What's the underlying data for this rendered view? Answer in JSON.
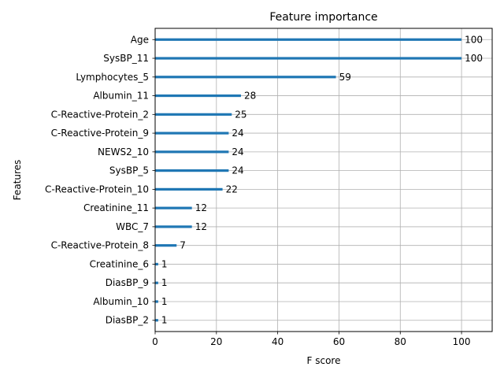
{
  "chart_data": {
    "type": "bar",
    "orientation": "horizontal",
    "title": "Feature importance",
    "xlabel": "F score",
    "ylabel": "Features",
    "xlim": [
      0,
      110
    ],
    "xticks": [
      0,
      20,
      40,
      60,
      80,
      100
    ],
    "grid": true,
    "bar_color": "#1f77b4",
    "categories": [
      "Age",
      "SysBP_11",
      "Lymphocytes_5",
      "Albumin_11",
      "C-Reactive-Protein_2",
      "C-Reactive-Protein_9",
      "NEWS2_10",
      "SysBP_5",
      "C-Reactive-Protein_10",
      "Creatinine_11",
      "WBC_7",
      "C-Reactive-Protein_8",
      "Creatinine_6",
      "DiasBP_9",
      "Albumin_10",
      "DiasBP_2"
    ],
    "values": [
      100,
      100,
      59,
      28,
      25,
      24,
      24,
      24,
      22,
      12,
      12,
      7,
      1,
      1,
      1,
      1
    ]
  }
}
